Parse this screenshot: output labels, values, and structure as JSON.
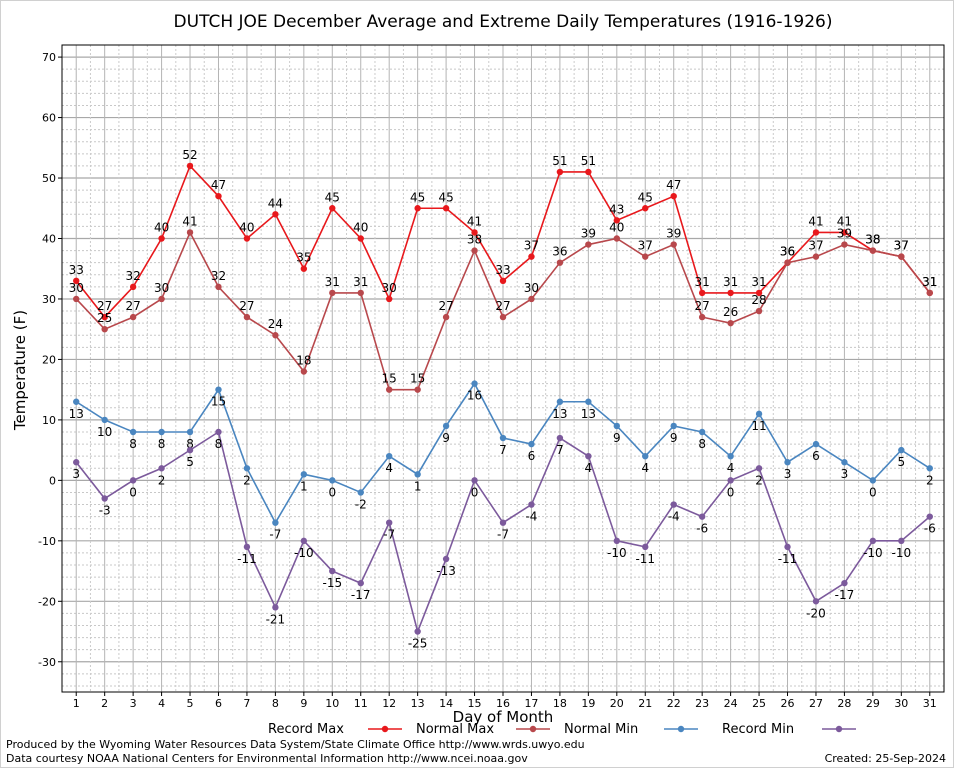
{
  "chart_data": {
    "type": "line",
    "title": "DUTCH JOE December Average and Extreme Daily Temperatures (1916-1926)",
    "xlabel": "Day of Month",
    "ylabel": "Temperature (F)",
    "ylim": [
      -35,
      72
    ],
    "yticks": [
      -30,
      -20,
      -10,
      0,
      10,
      20,
      30,
      40,
      50,
      60,
      70
    ],
    "x": [
      1,
      2,
      3,
      4,
      5,
      6,
      7,
      8,
      9,
      10,
      11,
      12,
      13,
      14,
      15,
      16,
      17,
      18,
      19,
      20,
      21,
      22,
      23,
      24,
      25,
      26,
      27,
      28,
      29,
      30,
      31
    ],
    "grid": true,
    "legend_position": "bottom",
    "series": [
      {
        "name": "Record Max",
        "color": "#e8181c",
        "label_pos": "above",
        "values": [
          33,
          27,
          32,
          40,
          52,
          47,
          40,
          44,
          35,
          45,
          40,
          30,
          45,
          45,
          41,
          33,
          37,
          51,
          51,
          43,
          45,
          47,
          31,
          31,
          31,
          36,
          41,
          41,
          38,
          37,
          31
        ]
      },
      {
        "name": "Normal Max",
        "color": "#b8484c",
        "label_pos": "above",
        "values": [
          30,
          25,
          27,
          30,
          41,
          32,
          27,
          24,
          18,
          31,
          31,
          15,
          15,
          27,
          38,
          27,
          30,
          36,
          39,
          40,
          37,
          39,
          27,
          26,
          28,
          36,
          37,
          39,
          38,
          37,
          31
        ]
      },
      {
        "name": "Normal Min",
        "color": "#4a86c0",
        "label_pos": "below",
        "values": [
          13,
          10,
          8,
          8,
          8,
          15,
          2,
          -7,
          1,
          0,
          -2,
          4,
          1,
          9,
          16,
          7,
          6,
          13,
          13,
          9,
          4,
          9,
          8,
          4,
          11,
          3,
          6,
          3,
          0,
          5,
          2
        ]
      },
      {
        "name": "Record Min",
        "color": "#7c5a9c",
        "label_pos": "below",
        "values": [
          3,
          -3,
          0,
          2,
          5,
          8,
          -11,
          -21,
          -10,
          -15,
          -17,
          -7,
          -25,
          -13,
          0,
          -7,
          -4,
          7,
          4,
          -10,
          -11,
          -4,
          -6,
          0,
          2,
          -11,
          -20,
          -17,
          -10,
          -10,
          -6
        ]
      }
    ]
  },
  "footer": {
    "produced_by": "Produced by the Wyoming Water Resources Data System/State Climate Office http://www.wrds.uwyo.edu",
    "courtesy": "Data courtesy NOAA National Centers for Environmental Information http://www.ncei.noaa.gov",
    "created": "Created:  25-Sep-2024"
  }
}
